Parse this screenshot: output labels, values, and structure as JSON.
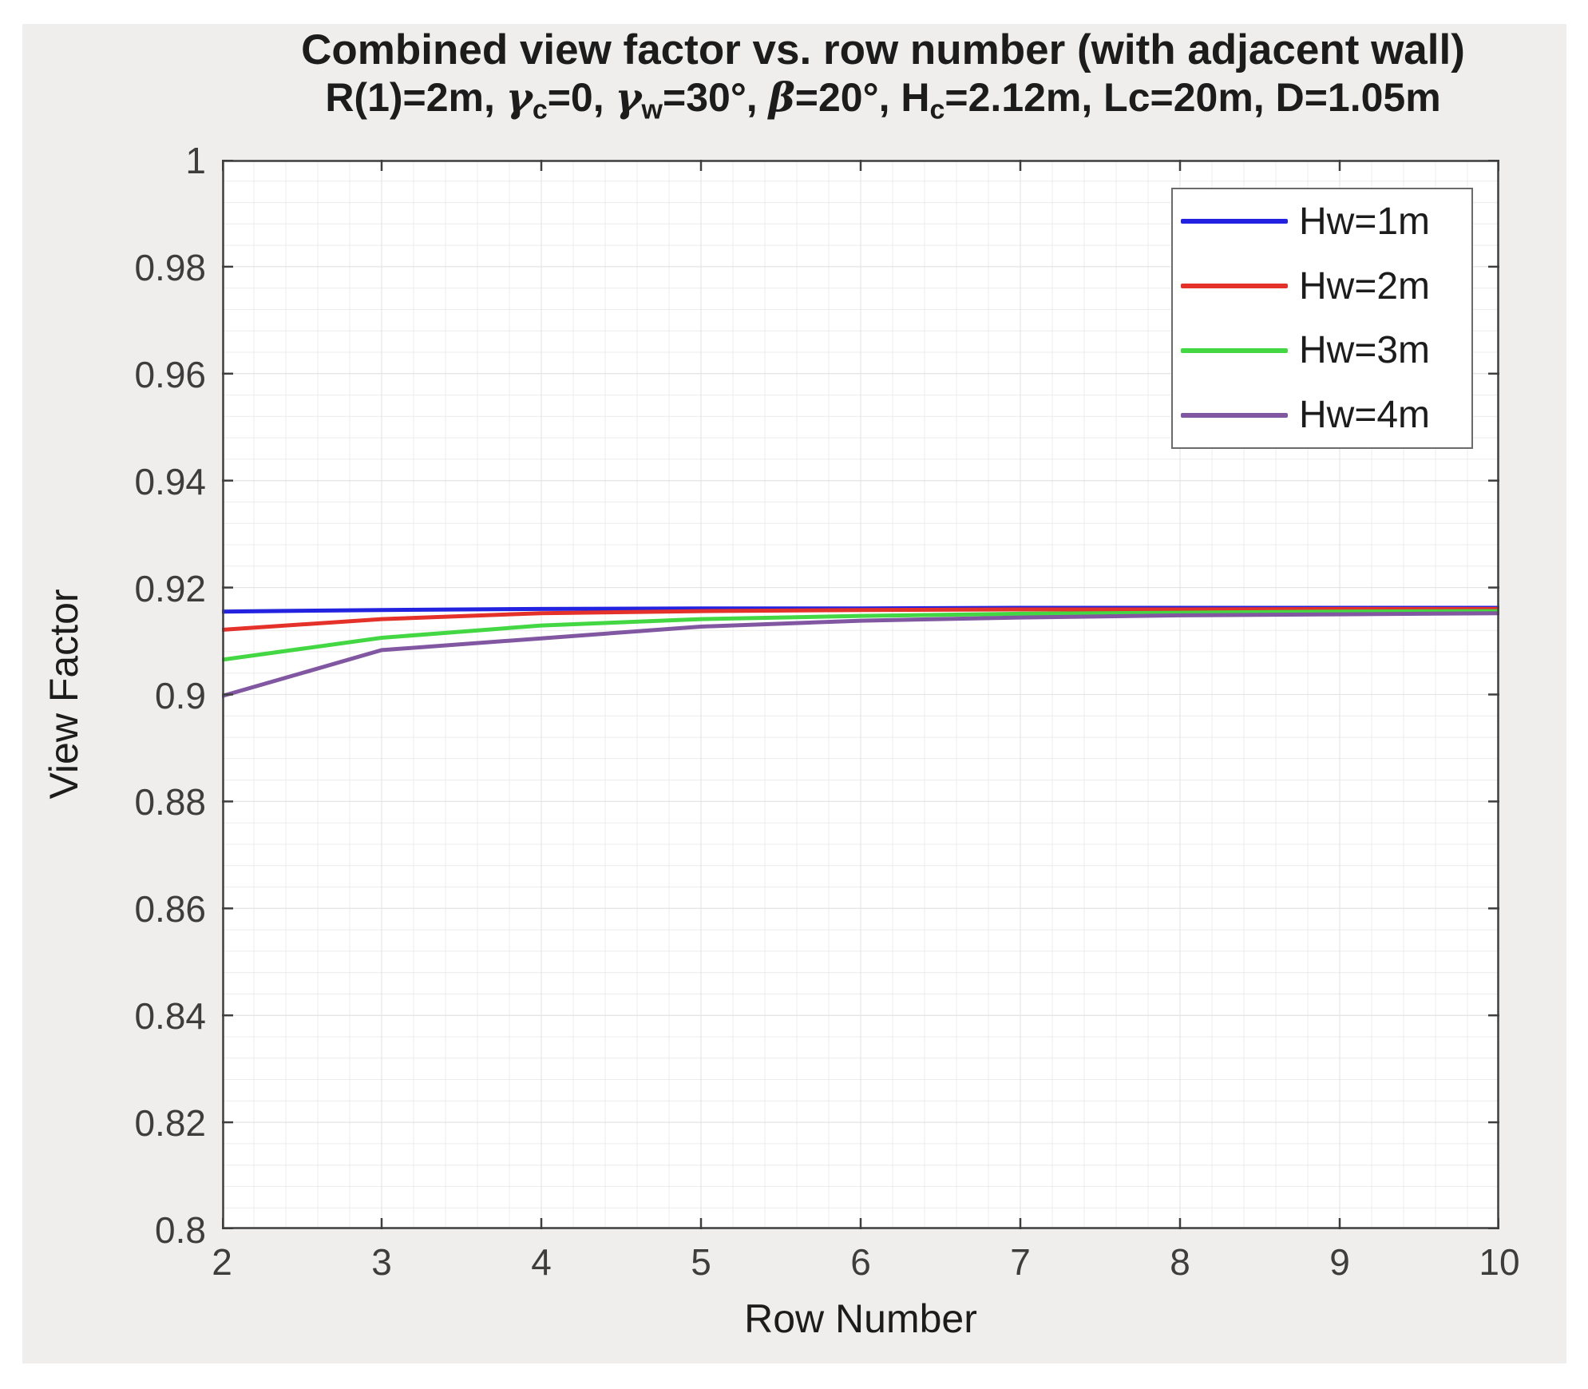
{
  "figure": {
    "page_background": "#ffffff",
    "background": "#efeeec",
    "plot_background": "#ffffff",
    "axis_color": "#3f3f3f",
    "tick_label_color": "#3d3d3d",
    "title_color": "#1c1c1c",
    "grid_minor_color": "#ececec",
    "grid_major_color": "#e2e2e2",
    "legend_border_color": "#6b6b6b",
    "legend_background": "#ffffff"
  },
  "header": {
    "title": "Combined view factor vs. row number (with adjacent wall)",
    "subtitle_plain": "R(1)=2m, γc=0, γw=30°, β=20°, Hc=2.12m, Lc=20m, D=1.05m",
    "subtitle_segments": [
      {
        "text": "R(1)=2m, "
      },
      {
        "text": "γ",
        "italic": true
      },
      {
        "text": "c",
        "sub": true
      },
      {
        "text": "=0, "
      },
      {
        "text": "γ",
        "italic": true
      },
      {
        "text": "w",
        "sub": true
      },
      {
        "text": "=30°, "
      },
      {
        "text": "β",
        "italic": true
      },
      {
        "text": "=20°, H"
      },
      {
        "text": "c",
        "sub": true
      },
      {
        "text": "=2.12m, Lc=20m, D=1.05m"
      }
    ]
  },
  "chart_data": {
    "type": "line",
    "title": "Combined view factor vs. row number (with adjacent wall)",
    "subtitle": "R(1)=2m, γc=0, γw=30°, β=20°, Hc=2.12m, Lc=20m, D=1.05m",
    "xlabel": "Row Number",
    "ylabel": "View Factor",
    "xlim": [
      2,
      10
    ],
    "ylim": [
      0.8,
      1.0
    ],
    "grid": "minor",
    "minor_x_step": 0.2,
    "minor_y_step": 0.004,
    "legend_position": "top-right",
    "x": [
      2,
      3,
      4,
      5,
      6,
      7,
      8,
      9,
      10
    ],
    "xtick_labels": [
      "2",
      "3",
      "4",
      "5",
      "6",
      "7",
      "8",
      "9",
      "10"
    ],
    "ytick_values": [
      0.8,
      0.82,
      0.84,
      0.86,
      0.88,
      0.9,
      0.92,
      0.94,
      0.96,
      0.98,
      1.0
    ],
    "ytick_labels": [
      "0.8",
      "0.82",
      "0.84",
      "0.86",
      "0.88",
      "0.9",
      "0.92",
      "0.94",
      "0.96",
      "0.98",
      "1"
    ],
    "series": [
      {
        "name": "Hw=1m",
        "color": "#2222e0",
        "values": [
          0.9155,
          0.9158,
          0.916,
          0.9161,
          0.9161,
          0.9162,
          0.9162,
          0.9162,
          0.9162
        ]
      },
      {
        "name": "Hw=2m",
        "color": "#e4312a",
        "values": [
          0.9121,
          0.9141,
          0.9152,
          0.9156,
          0.9158,
          0.9159,
          0.9159,
          0.916,
          0.916
        ]
      },
      {
        "name": "Hw=3m",
        "color": "#43d843",
        "values": [
          0.9065,
          0.9106,
          0.9129,
          0.9141,
          0.9147,
          0.9151,
          0.9153,
          0.9155,
          0.9156
        ]
      },
      {
        "name": "Hw=4m",
        "color": "#8257a1",
        "values": [
          0.8997,
          0.9083,
          0.9105,
          0.9127,
          0.9138,
          0.9144,
          0.9148,
          0.915,
          0.9152
        ]
      }
    ]
  }
}
